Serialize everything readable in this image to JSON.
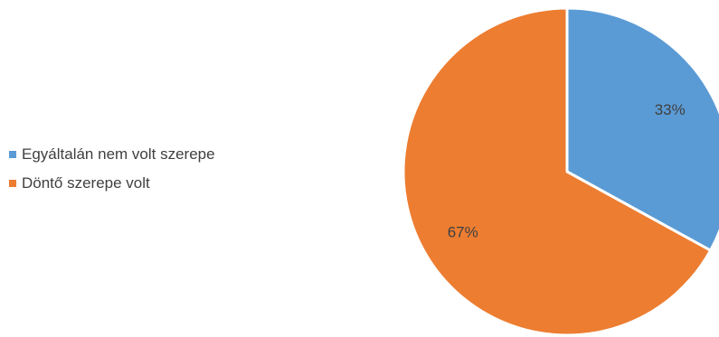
{
  "chart_data": {
    "type": "pie",
    "title": "",
    "categories": [
      "Egyáltalán nem volt szerepe",
      "Döntő szerepe volt"
    ],
    "values": [
      33,
      67
    ],
    "data_labels": [
      "33%",
      "67%"
    ],
    "colors": [
      "#5B9BD5",
      "#ED7D31"
    ],
    "legend_position": "left",
    "start_angle": "12 o'clock, clockwise"
  }
}
